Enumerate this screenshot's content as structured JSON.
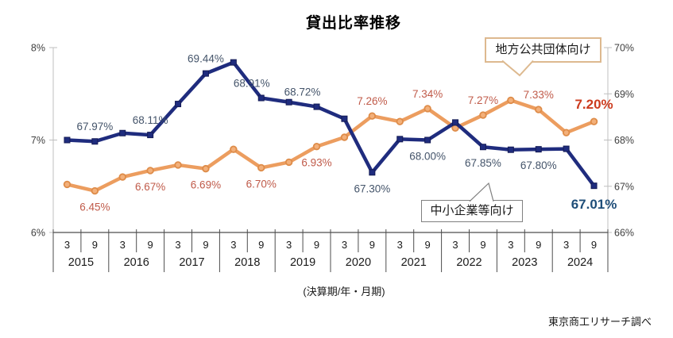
{
  "source": "東京商工リサーチ調べ",
  "colors": {
    "background": "#ffffff",
    "title_text": "#000000",
    "axis_line": "#bfbfbf",
    "axis_text": "#3f3f3f",
    "table_line": "#4d4d4d",
    "orange_line": "#ec9d5f",
    "orange_marker_fill": "#f3b07a",
    "orange_marker_stroke": "#de8c49",
    "orange_label": "#c05b4a",
    "orange_emphasis": "#cc3b1e",
    "blue_line": "#1f2c7e",
    "blue_marker": "#1c2468",
    "blue_label": "#44546a",
    "blue_emphasis": "#1f4e79",
    "callout_orange_border": "#ddb98f",
    "callout_gray_border": "#808080"
  },
  "chart_data": {
    "type": "line",
    "title": "貸出比率推移",
    "xlabel": "(決算期/年・月期)",
    "x_years": [
      "2015",
      "2016",
      "2017",
      "2018",
      "2019",
      "2020",
      "2021",
      "2022",
      "2023",
      "2024"
    ],
    "x_periods_per_year": [
      "3",
      "9"
    ],
    "left_axis": {
      "min": 6,
      "max": 8,
      "ticks": [
        {
          "label": "8%",
          "v": 8
        },
        {
          "label": "7%",
          "v": 7
        },
        {
          "label": "6%",
          "v": 6
        }
      ]
    },
    "right_axis": {
      "min": 66,
      "max": 70,
      "ticks": [
        {
          "label": "70%",
          "v": 70
        },
        {
          "label": "69%",
          "v": 69
        },
        {
          "label": "68%",
          "v": 68
        },
        {
          "label": "67%",
          "v": 67
        },
        {
          "label": "66%",
          "v": 66
        }
      ]
    },
    "series": [
      {
        "name": "地方公共団体向け",
        "axis": "left",
        "marker": "circle",
        "line_color": "#ec9d5f",
        "marker_fill": "#f3b07a",
        "marker_stroke": "#de8c49",
        "label_color": "#c05b4a",
        "emphasis_color": "#cc3b1e",
        "values": [
          6.52,
          6.45,
          6.6,
          6.67,
          6.73,
          6.69,
          6.9,
          6.7,
          6.76,
          6.93,
          7.03,
          7.26,
          7.2,
          7.34,
          7.13,
          7.27,
          7.43,
          7.33,
          7.08,
          7.2
        ],
        "data_labels": [
          {
            "i": 1,
            "text": "6.45%",
            "pos": "below"
          },
          {
            "i": 3,
            "text": "6.67%",
            "pos": "below"
          },
          {
            "i": 5,
            "text": "6.69%",
            "pos": "below"
          },
          {
            "i": 7,
            "text": "6.70%",
            "pos": "below"
          },
          {
            "i": 9,
            "text": "6.93%",
            "pos": "below"
          },
          {
            "i": 11,
            "text": "7.26%",
            "pos": "above"
          },
          {
            "i": 13,
            "text": "7.34%",
            "pos": "above"
          },
          {
            "i": 15,
            "text": "7.27%",
            "pos": "above"
          },
          {
            "i": 17,
            "text": "7.33%",
            "pos": "above"
          },
          {
            "i": 19,
            "text": "7.20%",
            "pos": "above",
            "emphasis": true
          }
        ]
      },
      {
        "name": "中小企業等向け",
        "axis": "right",
        "marker": "square",
        "line_color": "#1f2c7e",
        "marker_fill": "#1f2c7e",
        "marker_stroke": "#141b55",
        "label_color": "#44546a",
        "emphasis_color": "#1f4e79",
        "values": [
          68.0,
          67.97,
          68.15,
          68.11,
          68.78,
          69.44,
          69.68,
          68.91,
          68.82,
          68.72,
          68.46,
          67.3,
          68.02,
          68.0,
          68.38,
          67.85,
          67.79,
          67.8,
          67.81,
          67.01
        ],
        "data_labels": [
          {
            "i": 1,
            "text": "67.97%",
            "pos": "above"
          },
          {
            "i": 3,
            "text": "68.11%",
            "pos": "above"
          },
          {
            "i": 5,
            "text": "69.44%",
            "pos": "above"
          },
          {
            "i": 7,
            "text": "68.91%",
            "pos": "above",
            "dx": -12
          },
          {
            "i": 9,
            "text": "68.72%",
            "pos": "above",
            "dx": -18
          },
          {
            "i": 11,
            "text": "67.30%",
            "pos": "below"
          },
          {
            "i": 13,
            "text": "68.00%",
            "pos": "below"
          },
          {
            "i": 15,
            "text": "67.85%",
            "pos": "below"
          },
          {
            "i": 17,
            "text": "67.80%",
            "pos": "below"
          },
          {
            "i": 19,
            "text": "67.01%",
            "pos": "below",
            "emphasis": true
          }
        ]
      }
    ]
  }
}
